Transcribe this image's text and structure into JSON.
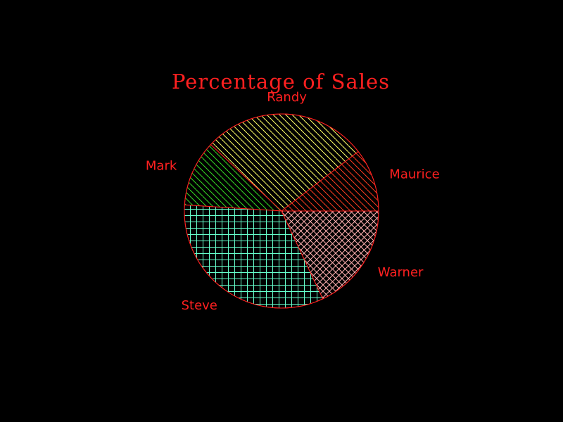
{
  "chart_data": {
    "type": "pie",
    "title": "Percentage of Sales",
    "slices": [
      {
        "label": "Maurice",
        "value": 10.5,
        "pattern": "diag-down",
        "color": "#ff3b1f"
      },
      {
        "label": "Randy",
        "value": 27.5,
        "pattern": "diag-down",
        "color": "#ffff66"
      },
      {
        "label": "Mark",
        "value": 11.0,
        "pattern": "diag-down",
        "color": "#33dd22"
      },
      {
        "label": "Steve",
        "value": 33.0,
        "pattern": "grid",
        "color": "#66ffcc"
      },
      {
        "label": "Warner",
        "value": 18.0,
        "pattern": "crosshatch",
        "color": "#ffb0b0"
      }
    ],
    "start_angle_deg": 0,
    "direction": "counterclockwise",
    "outline_color": "#ff2020",
    "background": "#000000",
    "legend": "none"
  }
}
